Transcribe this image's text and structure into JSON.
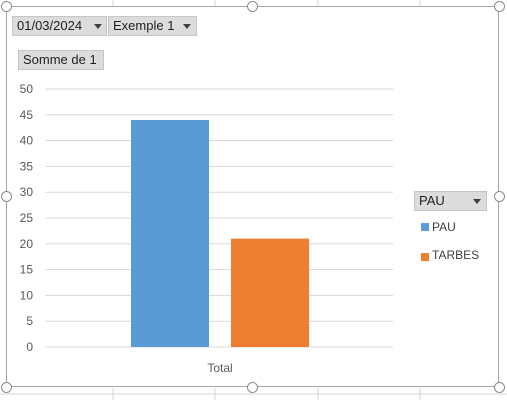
{
  "filters": [
    {
      "label": "01/03/2024"
    },
    {
      "label": "Exemple 1"
    }
  ],
  "value_field": {
    "label": "Somme de 1"
  },
  "legend_field": {
    "label": "PAU"
  },
  "colors": {
    "PAU": "#5b9bd5",
    "TARBES": "#ed7d31",
    "grid": "#d9d9d9"
  },
  "icons": {
    "dropdown": "triangle-down-icon"
  },
  "chart_data": {
    "type": "bar",
    "categories": [
      "Total"
    ],
    "series": [
      {
        "name": "PAU",
        "values": [
          44
        ]
      },
      {
        "name": "TARBES",
        "values": [
          21
        ]
      }
    ],
    "ylim": [
      0,
      50
    ],
    "yticks": [
      0,
      5,
      10,
      15,
      20,
      25,
      30,
      35,
      40,
      45,
      50
    ],
    "grid": true,
    "legend": "right",
    "title": "",
    "xlabel": "",
    "ylabel": ""
  }
}
